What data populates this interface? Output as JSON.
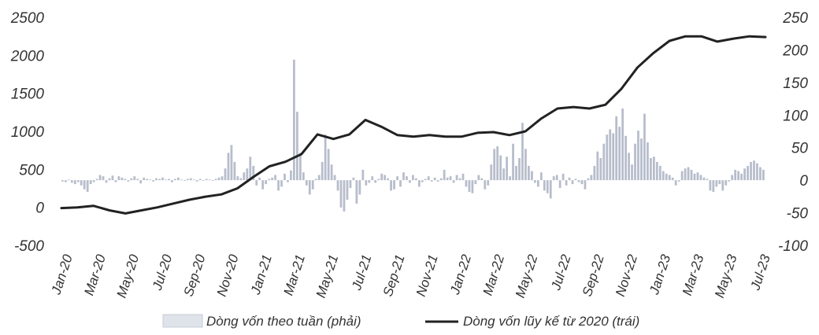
{
  "chart_data": {
    "type": "bar+line",
    "left_axis": {
      "ticks": [
        2500,
        2000,
        1500,
        1000,
        500,
        0,
        -500
      ],
      "range": [
        -500,
        2500
      ]
    },
    "right_axis": {
      "ticks": [
        250,
        200,
        150,
        100,
        50,
        0,
        -50,
        -100
      ],
      "range": [
        -100,
        250
      ]
    },
    "x_labels": [
      "Jan-20",
      "Mar-20",
      "May-20",
      "Jul-20",
      "Sep-20",
      "Nov-20",
      "Jan-21",
      "Mar-21",
      "May-21",
      "Jul-21",
      "Sep-21",
      "Nov-21",
      "Jan-22",
      "Mar-22",
      "May-22",
      "Jul-22",
      "Sep-22",
      "Nov-22",
      "Jan-23",
      "Mar-23",
      "May-23",
      "Jul-23"
    ],
    "series": [
      {
        "name": "Dòng vốn theo tuần (phải)",
        "axis": "right",
        "type": "bar",
        "color": "#aab1c2",
        "weeks_start": "2020-01",
        "values": [
          -2,
          -3,
          1,
          -4,
          -6,
          -3,
          -8,
          -14,
          -18,
          -6,
          -3,
          2,
          8,
          6,
          -4,
          3,
          7,
          -3,
          6,
          4,
          2,
          -2,
          3,
          6,
          2,
          -5,
          4,
          2,
          1,
          -2,
          3,
          2,
          4,
          1,
          2,
          -3,
          2,
          4,
          1,
          -1,
          2,
          3,
          1,
          -2,
          2,
          0,
          2,
          1,
          -1,
          2,
          4,
          6,
          18,
          42,
          54,
          28,
          6,
          3,
          12,
          18,
          36,
          22,
          -8,
          4,
          -14,
          -6,
          2,
          4,
          8,
          -16,
          -10,
          10,
          -3,
          15,
          185,
          105,
          42,
          12,
          -8,
          -22,
          -14,
          2,
          8,
          28,
          70,
          48,
          24,
          8,
          -16,
          -42,
          -48,
          -30,
          -12,
          4,
          -36,
          -22,
          16,
          -8,
          -4,
          6,
          -4,
          2,
          10,
          8,
          3,
          -16,
          -14,
          6,
          -10,
          12,
          6,
          -4,
          8,
          3,
          -10,
          -3,
          2,
          6,
          -2,
          4,
          -2,
          3,
          16,
          4,
          6,
          -4,
          8,
          3,
          10,
          -10,
          -18,
          -20,
          -6,
          8,
          3,
          -14,
          -8,
          24,
          48,
          52,
          38,
          18,
          36,
          6,
          56,
          22,
          34,
          88,
          48,
          22,
          14,
          -4,
          -10,
          12,
          -16,
          -20,
          -28,
          6,
          8,
          -12,
          10,
          -8,
          4,
          -6,
          2,
          -3,
          -6,
          -14,
          3,
          8,
          22,
          44,
          34,
          56,
          70,
          78,
          72,
          98,
          82,
          110,
          68,
          42,
          24,
          56,
          76,
          64,
          102,
          58,
          34,
          36,
          28,
          22,
          14,
          10,
          8,
          4,
          -8,
          -2,
          14,
          18,
          20,
          16,
          10,
          12,
          8,
          4,
          2,
          -16,
          -18,
          -10,
          -6,
          -16,
          -8,
          -2,
          8,
          16,
          14,
          10,
          18,
          22,
          28,
          30,
          26,
          20,
          16
        ]
      },
      {
        "name": "Dòng vốn lũy kế từ 2020 (trái)",
        "axis": "left",
        "type": "line",
        "color": "#222222",
        "points": [
          [
            "Jan-20",
            -10
          ],
          [
            "Feb-20",
            0
          ],
          [
            "Mar-20",
            20
          ],
          [
            "Apr-20",
            -40
          ],
          [
            "May-20",
            -80
          ],
          [
            "Jun-20",
            -40
          ],
          [
            "Jul-20",
            0
          ],
          [
            "Aug-20",
            50
          ],
          [
            "Sep-20",
            100
          ],
          [
            "Oct-20",
            140
          ],
          [
            "Nov-20",
            170
          ],
          [
            "Dec-20",
            250
          ],
          [
            "Jan-21",
            400
          ],
          [
            "Feb-21",
            540
          ],
          [
            "Mar-21",
            600
          ],
          [
            "Apr-21",
            700
          ],
          [
            "Apr-21b",
            960
          ],
          [
            "May-21",
            900
          ],
          [
            "Jun-21",
            960
          ],
          [
            "Jul-21",
            1150
          ],
          [
            "Aug-21",
            1060
          ],
          [
            "Sep-21",
            950
          ],
          [
            "Oct-21",
            930
          ],
          [
            "Nov-21",
            950
          ],
          [
            "Dec-21",
            930
          ],
          [
            "Jan-22",
            930
          ],
          [
            "Feb-22",
            980
          ],
          [
            "Mar-22",
            990
          ],
          [
            "Apr-22",
            950
          ],
          [
            "May-22",
            1000
          ],
          [
            "Jun-22",
            1170
          ],
          [
            "Jul-22",
            1300
          ],
          [
            "Aug-22",
            1320
          ],
          [
            "Sep-22",
            1300
          ],
          [
            "Oct-22",
            1350
          ],
          [
            "Nov-22",
            1560
          ],
          [
            "Dec-22",
            1840
          ],
          [
            "Jan-23",
            2030
          ],
          [
            "Feb-23",
            2190
          ],
          [
            "Mar-23",
            2250
          ],
          [
            "Apr-23",
            2250
          ],
          [
            "May-23",
            2180
          ],
          [
            "Jun-23",
            2220
          ],
          [
            "Jul-23",
            2250
          ],
          [
            "Aug-23",
            2240
          ]
        ]
      }
    ],
    "legend": {
      "position": "bottom-center"
    }
  }
}
